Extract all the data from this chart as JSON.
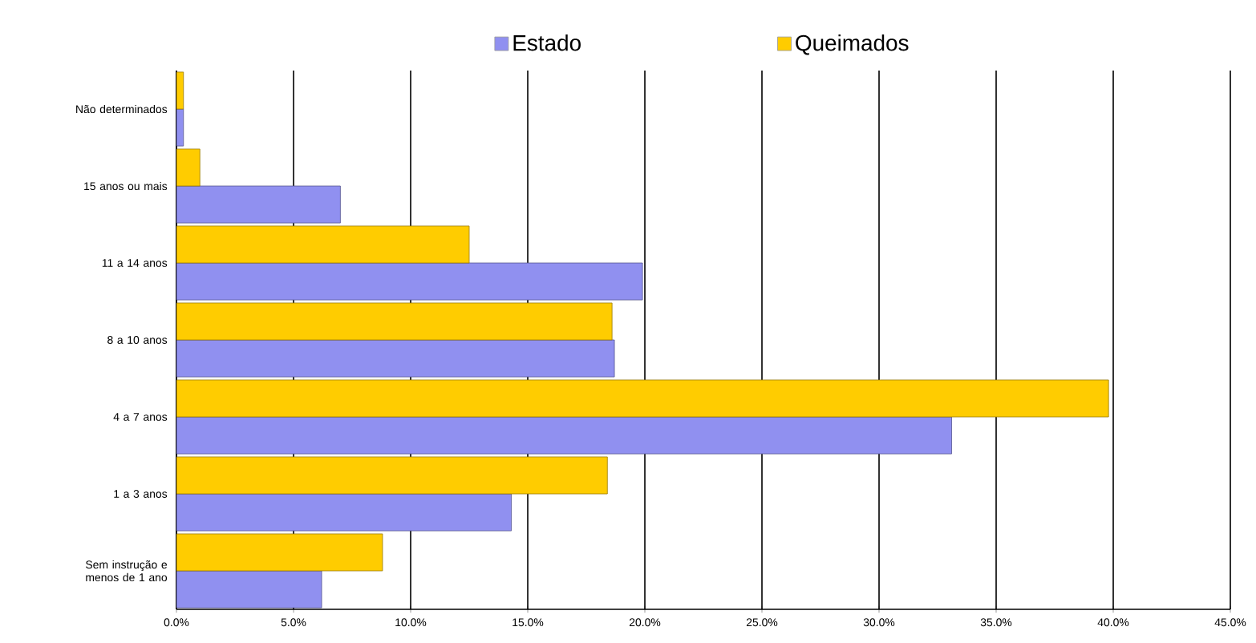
{
  "chart_data": {
    "type": "bar",
    "orientation": "horizontal",
    "categories": [
      "Não determinados",
      "15 anos ou mais",
      "11 a 14 anos",
      "8 a 10 anos",
      "4 a 7 anos",
      "1 a 3 anos",
      "Sem instrução e menos de 1 ano"
    ],
    "series": [
      {
        "name": "Estado",
        "color": "#9090f0",
        "values": [
          0.3,
          7.0,
          19.9,
          18.7,
          33.1,
          14.3,
          6.2
        ]
      },
      {
        "name": "Queimados",
        "color": "#ffcc00",
        "values": [
          0.3,
          1.0,
          12.5,
          18.6,
          39.8,
          18.4,
          8.8
        ]
      }
    ],
    "xlim": [
      0,
      45
    ],
    "xticks": [
      {
        "value": 0,
        "label": "0.0%"
      },
      {
        "value": 5,
        "label": "5.0%"
      },
      {
        "value": 10,
        "label": "10.0%"
      },
      {
        "value": 15,
        "label": "15.0%"
      },
      {
        "value": 20,
        "label": "20.0%"
      },
      {
        "value": 25,
        "label": "25.0%"
      },
      {
        "value": 30,
        "label": "30.0%"
      },
      {
        "value": 35,
        "label": "35.0%"
      },
      {
        "value": 40,
        "label": "40.0%"
      },
      {
        "value": 45,
        "label": "45.0%"
      }
    ],
    "grid": "x",
    "legend": "top"
  }
}
